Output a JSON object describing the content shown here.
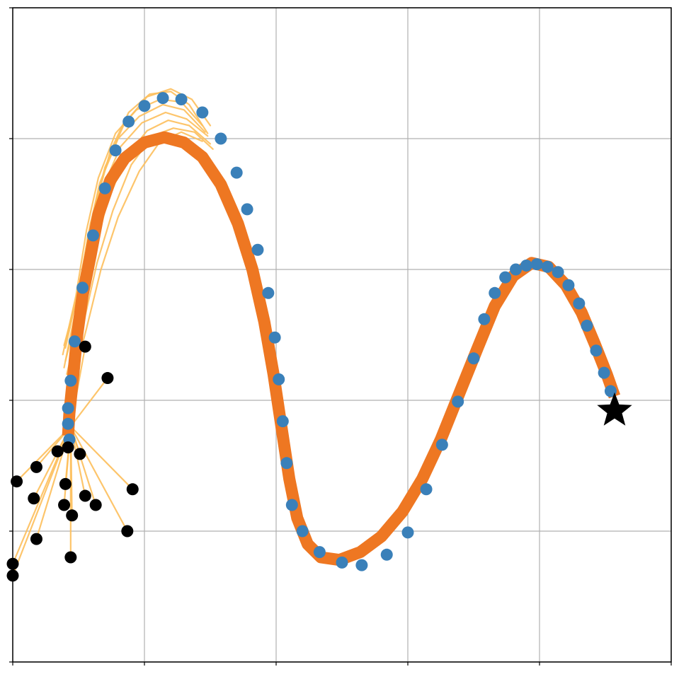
{
  "chart_data": {
    "type": "line",
    "title": "",
    "xlabel": "",
    "ylabel": "",
    "xlim": [
      0,
      5
    ],
    "ylim": [
      0,
      5
    ],
    "grid": true,
    "xticks": [
      0,
      1,
      2,
      3,
      4,
      5
    ],
    "yticks": [
      0,
      1,
      2,
      3,
      4,
      5
    ],
    "tick_labels_visible": false,
    "colors": {
      "reference_path": "#ee7722",
      "sampled_paths": "#fdbf5c",
      "waypoints": "#3a80b9",
      "start_points": "#000000",
      "goal": "#000000",
      "grid": "#b0b0b0"
    },
    "reference_path": [
      [
        0.42,
        1.73
      ],
      [
        0.43,
        1.9
      ],
      [
        0.46,
        2.2
      ],
      [
        0.49,
        2.5
      ],
      [
        0.53,
        2.8
      ],
      [
        0.59,
        3.1
      ],
      [
        0.65,
        3.42
      ],
      [
        0.74,
        3.68
      ],
      [
        0.85,
        3.85
      ],
      [
        1.0,
        3.97
      ],
      [
        1.15,
        4.01
      ],
      [
        1.3,
        3.97
      ],
      [
        1.44,
        3.86
      ],
      [
        1.58,
        3.65
      ],
      [
        1.71,
        3.35
      ],
      [
        1.82,
        3.0
      ],
      [
        1.91,
        2.6
      ],
      [
        1.98,
        2.2
      ],
      [
        2.04,
        1.8
      ],
      [
        2.1,
        1.4
      ],
      [
        2.16,
        1.1
      ],
      [
        2.24,
        0.9
      ],
      [
        2.34,
        0.8
      ],
      [
        2.48,
        0.78
      ],
      [
        2.64,
        0.84
      ],
      [
        2.8,
        0.96
      ],
      [
        2.96,
        1.15
      ],
      [
        3.11,
        1.4
      ],
      [
        3.25,
        1.7
      ],
      [
        3.39,
        2.05
      ],
      [
        3.53,
        2.4
      ],
      [
        3.66,
        2.72
      ],
      [
        3.8,
        2.95
      ],
      [
        3.94,
        3.05
      ],
      [
        4.07,
        3.02
      ],
      [
        4.2,
        2.88
      ],
      [
        4.32,
        2.67
      ],
      [
        4.42,
        2.43
      ],
      [
        4.51,
        2.2
      ],
      [
        4.57,
        2.03
      ]
    ],
    "waypoints": [
      [
        0.43,
        1.7
      ],
      [
        0.42,
        1.82
      ],
      [
        0.42,
        1.94
      ],
      [
        0.44,
        2.15
      ],
      [
        0.47,
        2.45
      ],
      [
        0.53,
        2.86
      ],
      [
        0.61,
        3.26
      ],
      [
        0.7,
        3.62
      ],
      [
        0.78,
        3.91
      ],
      [
        0.88,
        4.13
      ],
      [
        1.0,
        4.25
      ],
      [
        1.14,
        4.31
      ],
      [
        1.28,
        4.3
      ],
      [
        1.44,
        4.2
      ],
      [
        1.58,
        4.0
      ],
      [
        1.7,
        3.74
      ],
      [
        1.78,
        3.46
      ],
      [
        1.86,
        3.15
      ],
      [
        1.94,
        2.82
      ],
      [
        1.99,
        2.48
      ],
      [
        2.02,
        2.16
      ],
      [
        2.05,
        1.84
      ],
      [
        2.08,
        1.52
      ],
      [
        2.12,
        1.2
      ],
      [
        2.2,
        1.0
      ],
      [
        2.33,
        0.84
      ],
      [
        2.5,
        0.76
      ],
      [
        2.65,
        0.74
      ],
      [
        2.84,
        0.82
      ],
      [
        3.0,
        0.99
      ],
      [
        3.14,
        1.32
      ],
      [
        3.26,
        1.66
      ],
      [
        3.38,
        1.99
      ],
      [
        3.5,
        2.32
      ],
      [
        3.58,
        2.62
      ],
      [
        3.66,
        2.82
      ],
      [
        3.74,
        2.94
      ],
      [
        3.82,
        3.0
      ],
      [
        3.9,
        3.03
      ],
      [
        3.98,
        3.04
      ],
      [
        4.06,
        3.02
      ],
      [
        4.14,
        2.98
      ],
      [
        4.22,
        2.88
      ],
      [
        4.3,
        2.74
      ],
      [
        4.36,
        2.57
      ],
      [
        4.43,
        2.38
      ],
      [
        4.49,
        2.21
      ],
      [
        4.54,
        2.07
      ]
    ],
    "goal": [
      4.57,
      1.92
    ],
    "start_points": [
      [
        0.55,
        2.41
      ],
      [
        0.72,
        2.17
      ],
      [
        0.34,
        1.61
      ],
      [
        0.51,
        1.59
      ],
      [
        0.42,
        1.64
      ],
      [
        0.18,
        1.49
      ],
      [
        0.03,
        1.38
      ],
      [
        0.4,
        1.36
      ],
      [
        0.91,
        1.32
      ],
      [
        0.16,
        1.25
      ],
      [
        0.55,
        1.27
      ],
      [
        0.39,
        1.2
      ],
      [
        0.63,
        1.2
      ],
      [
        0.45,
        1.12
      ],
      [
        0.87,
        1.0
      ],
      [
        0.18,
        0.94
      ],
      [
        0.44,
        0.8
      ],
      [
        0.0,
        0.75
      ],
      [
        0.0,
        0.66
      ]
    ],
    "sampled_paths": [
      [
        [
          0.4,
          2.3
        ],
        [
          0.5,
          2.7
        ],
        [
          0.58,
          3.2
        ],
        [
          0.68,
          3.62
        ],
        [
          0.82,
          3.94
        ],
        [
          0.98,
          4.12
        ],
        [
          1.16,
          4.2
        ],
        [
          1.32,
          4.15
        ],
        [
          1.48,
          4.02
        ]
      ],
      [
        [
          0.39,
          2.25
        ],
        [
          0.49,
          2.75
        ],
        [
          0.57,
          3.25
        ],
        [
          0.66,
          3.66
        ],
        [
          0.8,
          4.0
        ],
        [
          0.96,
          4.17
        ],
        [
          1.14,
          4.26
        ],
        [
          1.3,
          4.22
        ],
        [
          1.46,
          4.05
        ]
      ],
      [
        [
          0.38,
          2.35
        ],
        [
          0.48,
          2.8
        ],
        [
          0.56,
          3.3
        ],
        [
          0.65,
          3.7
        ],
        [
          0.78,
          4.04
        ],
        [
          0.94,
          4.22
        ],
        [
          1.12,
          4.3
        ],
        [
          1.28,
          4.28
        ],
        [
          1.44,
          4.1
        ]
      ],
      [
        [
          0.41,
          2.2
        ],
        [
          0.52,
          2.65
        ],
        [
          0.61,
          3.1
        ],
        [
          0.72,
          3.52
        ],
        [
          0.86,
          3.86
        ],
        [
          1.02,
          4.06
        ],
        [
          1.18,
          4.14
        ],
        [
          1.34,
          4.1
        ],
        [
          1.5,
          3.96
        ]
      ],
      [
        [
          0.42,
          2.15
        ],
        [
          0.54,
          2.6
        ],
        [
          0.64,
          3.05
        ],
        [
          0.76,
          3.45
        ],
        [
          0.9,
          3.8
        ],
        [
          1.06,
          4.02
        ],
        [
          1.22,
          4.08
        ],
        [
          1.38,
          4.05
        ],
        [
          1.52,
          3.92
        ]
      ],
      [
        [
          0.43,
          2.05
        ],
        [
          0.56,
          2.55
        ],
        [
          0.67,
          3.0
        ],
        [
          0.8,
          3.4
        ],
        [
          0.96,
          3.75
        ],
        [
          1.12,
          3.98
        ],
        [
          1.28,
          4.05
        ],
        [
          1.44,
          3.98
        ]
      ],
      [
        [
          0.4,
          2.4
        ],
        [
          0.5,
          2.85
        ],
        [
          0.59,
          3.35
        ],
        [
          0.7,
          3.78
        ],
        [
          0.85,
          4.12
        ],
        [
          1.02,
          4.32
        ],
        [
          1.2,
          4.38
        ],
        [
          1.36,
          4.3
        ],
        [
          1.5,
          4.1
        ]
      ],
      [
        [
          0.39,
          2.42
        ],
        [
          0.47,
          2.72
        ],
        [
          0.55,
          3.1
        ],
        [
          0.63,
          3.5
        ],
        [
          0.74,
          3.9
        ],
        [
          0.88,
          4.2
        ],
        [
          1.04,
          4.34
        ],
        [
          1.2,
          4.36
        ],
        [
          1.34,
          4.26
        ],
        [
          1.48,
          4.04
        ]
      ]
    ],
    "connectors_from": [
      0.44,
      1.8
    ]
  }
}
